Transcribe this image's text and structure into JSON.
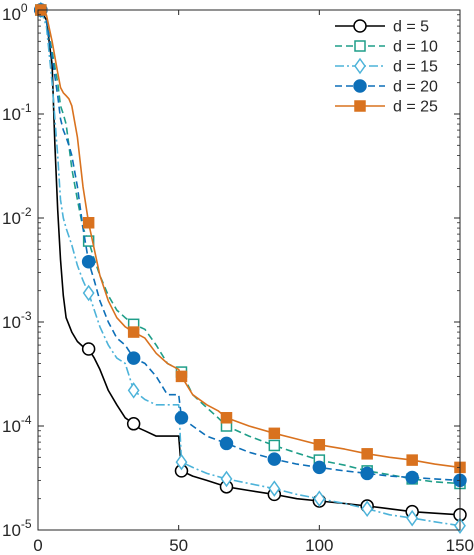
{
  "chart_data": {
    "type": "line",
    "title": "",
    "xlabel": "",
    "ylabel": "",
    "xlim": [
      0,
      150
    ],
    "ylim": [
      1e-05,
      1
    ],
    "yscale": "log",
    "grid": false,
    "legend_position": "top-right",
    "x_ticks": [
      0,
      50,
      100,
      150
    ],
    "x_tick_labels": [
      "0",
      "50",
      "100",
      "150"
    ],
    "y_ticks": [
      1e-05,
      0.0001,
      0.001,
      0.01,
      0.1,
      1
    ],
    "y_tick_labels": [
      {
        "base": "10",
        "exp": "-5"
      },
      {
        "base": "10",
        "exp": "-4"
      },
      {
        "base": "10",
        "exp": "-3"
      },
      {
        "base": "10",
        "exp": "-2"
      },
      {
        "base": "10",
        "exp": "-1"
      },
      {
        "base": "10",
        "exp": "0"
      }
    ],
    "series": [
      {
        "name": "d = 5",
        "color": "#000000",
        "line_style": "solid",
        "marker": "circle-open",
        "marker_x": [
          1,
          18,
          34,
          51,
          67,
          84,
          100,
          117,
          133,
          150
        ],
        "marker_y": [
          1.0,
          0.00055,
          0.000105,
          3.7e-05,
          2.6e-05,
          2.2e-05,
          1.9e-05,
          1.7e-05,
          1.5e-05,
          1.4e-05
        ],
        "x": [
          1,
          3,
          5,
          6,
          7,
          8,
          9,
          10,
          12,
          14,
          16,
          18,
          20,
          22,
          25,
          28,
          31,
          34,
          36,
          38,
          42,
          46,
          50,
          51,
          55,
          60,
          67,
          75,
          84,
          92,
          100,
          109,
          117,
          125,
          133,
          141,
          150
        ],
        "y": [
          1.0,
          0.8,
          0.3,
          0.05,
          0.012,
          0.004,
          0.0018,
          0.0011,
          0.0008,
          0.00065,
          0.00058,
          0.00055,
          0.00045,
          0.00035,
          0.00022,
          0.00016,
          0.00012,
          0.000105,
          9.5e-05,
          9e-05,
          8e-05,
          8e-05,
          8e-05,
          3.7e-05,
          3.3e-05,
          3e-05,
          2.6e-05,
          2.4e-05,
          2.2e-05,
          2e-05,
          1.9e-05,
          1.8e-05,
          1.7e-05,
          1.6e-05,
          1.5e-05,
          1.45e-05,
          1.4e-05
        ]
      },
      {
        "name": "d = 10",
        "color": "#1f9e89",
        "line_style": "dashed",
        "marker": "square-open",
        "marker_x": [
          1,
          18,
          34,
          51,
          67,
          84,
          100,
          117,
          133,
          150
        ],
        "marker_y": [
          1.0,
          0.006,
          0.00095,
          0.00033,
          0.0001,
          6.5e-05,
          4.7e-05,
          3.7e-05,
          3.1e-05,
          2.8e-05
        ],
        "x": [
          1,
          3,
          5,
          7,
          8,
          9,
          10,
          11,
          12,
          14,
          16,
          18,
          20,
          22,
          25,
          28,
          31,
          34,
          38,
          42,
          46,
          50,
          51,
          55,
          60,
          64,
          67,
          75,
          84,
          92,
          100,
          109,
          117,
          125,
          133,
          141,
          150
        ],
        "y": [
          1.0,
          0.8,
          0.4,
          0.2,
          0.12,
          0.1,
          0.08,
          0.05,
          0.03,
          0.015,
          0.008,
          0.006,
          0.004,
          0.0028,
          0.0018,
          0.0013,
          0.0011,
          0.00095,
          0.00085,
          0.0006,
          0.0004,
          0.00035,
          0.00033,
          0.0002,
          0.00015,
          0.00012,
          0.0001,
          8e-05,
          6.5e-05,
          5.5e-05,
          4.7e-05,
          4.2e-05,
          3.7e-05,
          3.4e-05,
          3.1e-05,
          2.9e-05,
          2.8e-05
        ]
      },
      {
        "name": "d = 15",
        "color": "#4db3d9",
        "line_style": "dashdot",
        "marker": "diamond-open",
        "marker_x": [
          1,
          18,
          34,
          51,
          67,
          84,
          100,
          117,
          133,
          150
        ],
        "marker_y": [
          1.0,
          0.0019,
          0.00022,
          4.5e-05,
          3.1e-05,
          2.5e-05,
          2e-05,
          1.6e-05,
          1.3e-05,
          1.1e-05
        ],
        "x": [
          1,
          3,
          5,
          7,
          8,
          9,
          10,
          12,
          14,
          16,
          18,
          20,
          22,
          25,
          28,
          31,
          34,
          38,
          42,
          46,
          50,
          51,
          55,
          60,
          67,
          75,
          84,
          92,
          100,
          109,
          117,
          125,
          133,
          141,
          150
        ],
        "y": [
          1.0,
          0.7,
          0.2,
          0.04,
          0.015,
          0.01,
          0.008,
          0.0055,
          0.0035,
          0.0025,
          0.0019,
          0.0013,
          0.0009,
          0.0006,
          0.00045,
          0.0004,
          0.00022,
          0.00018,
          0.00016,
          0.00016,
          0.00016,
          4.5e-05,
          4e-05,
          3.5e-05,
          3.1e-05,
          2.8e-05,
          2.5e-05,
          2.2e-05,
          2e-05,
          1.8e-05,
          1.6e-05,
          1.4e-05,
          1.3e-05,
          1.2e-05,
          1.1e-05
        ]
      },
      {
        "name": "d = 20",
        "color": "#0d6fb8",
        "line_style": "dashed",
        "marker": "circle-filled",
        "marker_x": [
          1,
          18,
          34,
          51,
          67,
          84,
          100,
          117,
          133,
          150
        ],
        "marker_y": [
          1.0,
          0.0038,
          0.00045,
          0.00012,
          6.8e-05,
          4.8e-05,
          4e-05,
          3.5e-05,
          3.2e-05,
          3e-05
        ],
        "x": [
          1,
          3,
          5,
          7,
          8,
          9,
          10,
          11,
          12,
          14,
          16,
          18,
          20,
          22,
          25,
          28,
          31,
          34,
          38,
          42,
          46,
          50,
          51,
          55,
          60,
          67,
          75,
          84,
          92,
          100,
          109,
          117,
          125,
          133,
          141,
          150
        ],
        "y": [
          1.0,
          0.8,
          0.35,
          0.15,
          0.09,
          0.07,
          0.06,
          0.05,
          0.04,
          0.02,
          0.008,
          0.0038,
          0.0025,
          0.0016,
          0.001,
          0.0007,
          0.0006,
          0.00045,
          0.0004,
          0.0003,
          0.0002,
          0.0002,
          0.00012,
          0.0001,
          8e-05,
          6.8e-05,
          5.6e-05,
          4.8e-05,
          4.3e-05,
          4e-05,
          3.7e-05,
          3.5e-05,
          3.3e-05,
          3.2e-05,
          3.1e-05,
          3e-05
        ]
      },
      {
        "name": "d = 25",
        "color": "#d9721f",
        "line_style": "solid",
        "marker": "square-filled",
        "marker_x": [
          1,
          18,
          34,
          51,
          67,
          84,
          100,
          117,
          133,
          150
        ],
        "marker_y": [
          1.0,
          0.009,
          0.0008,
          0.0003,
          0.00012,
          8.5e-05,
          6.6e-05,
          5.4e-05,
          4.7e-05,
          4e-05
        ],
        "x": [
          1,
          3,
          5,
          7,
          8,
          9,
          10,
          11,
          12,
          14,
          16,
          18,
          20,
          22,
          25,
          28,
          31,
          34,
          38,
          42,
          46,
          50,
          51,
          55,
          60,
          64,
          67,
          75,
          84,
          92,
          100,
          109,
          117,
          125,
          133,
          141,
          150
        ],
        "y": [
          1.0,
          0.9,
          0.5,
          0.25,
          0.18,
          0.16,
          0.15,
          0.14,
          0.12,
          0.06,
          0.02,
          0.009,
          0.005,
          0.0028,
          0.0016,
          0.0011,
          0.0009,
          0.0008,
          0.0007,
          0.0005,
          0.0004,
          0.00035,
          0.0003,
          0.0002,
          0.00016,
          0.00014,
          0.00012,
          0.0001,
          8.5e-05,
          7.5e-05,
          6.6e-05,
          6e-05,
          5.4e-05,
          5e-05,
          4.7e-05,
          4.3e-05,
          4e-05
        ]
      }
    ]
  }
}
